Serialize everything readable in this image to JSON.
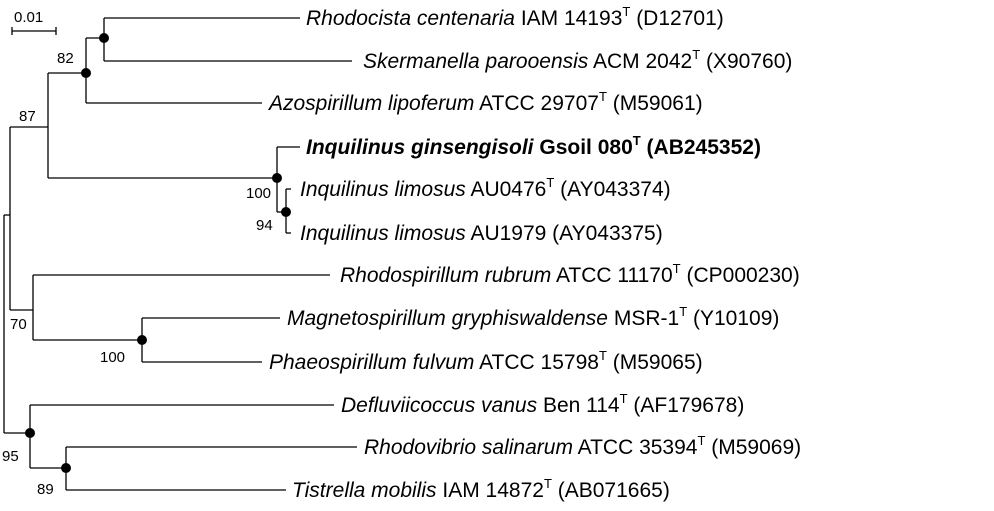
{
  "scale_bar": {
    "label": "0.01"
  },
  "taxa": [
    {
      "id": "t1",
      "species": "Rhodocista centenaria",
      "strain": "IAM 14193",
      "type_strain": true,
      "accession": "(D12701)",
      "bold": false
    },
    {
      "id": "t2",
      "species": "Skermanella parooensis",
      "strain": "ACM 2042",
      "type_strain": true,
      "accession": "(X90760)",
      "bold": false
    },
    {
      "id": "t3",
      "species": "Azospirillum lipoferum",
      "strain": "ATCC 29707",
      "type_strain": true,
      "accession": "(M59061)",
      "bold": false
    },
    {
      "id": "t4",
      "species": "Inquilinus ginsengisoli",
      "strain": "Gsoil 080",
      "type_strain": true,
      "accession": "(AB245352)",
      "bold": true
    },
    {
      "id": "t5",
      "species": "Inquilinus limosus",
      "strain": "AU0476",
      "type_strain": true,
      "accession": "(AY043374)",
      "bold": false
    },
    {
      "id": "t6",
      "species": "Inquilinus limosus",
      "strain": "AU1979",
      "type_strain": false,
      "accession": "(AY043375)",
      "bold": false
    },
    {
      "id": "t7",
      "species": "Rhodospirillum rubrum",
      "strain": "ATCC 11170",
      "type_strain": true,
      "accession": "(CP000230)",
      "bold": false
    },
    {
      "id": "t8",
      "species": "Magnetospirillum gryphiswaldense",
      "strain": "MSR-1",
      "type_strain": true,
      "accession": "(Y10109)",
      "bold": false
    },
    {
      "id": "t9",
      "species": "Phaeospirillum fulvum",
      "strain": "ATCC 15798",
      "type_strain": true,
      "accession": "(M59065)",
      "bold": false
    },
    {
      "id": "t10",
      "species": "Defluviicoccus vanus",
      "strain": "Ben 114",
      "type_strain": true,
      "accession": "(AF179678)",
      "bold": false
    },
    {
      "id": "t11",
      "species": "Rhodovibrio salinarum",
      "strain": "ATCC 35394",
      "type_strain": true,
      "accession": "(M59069)",
      "bold": false
    },
    {
      "id": "t12",
      "species": "Tistrella mobilis",
      "strain": "IAM 14872",
      "type_strain": true,
      "accession": "(AB071665)",
      "bold": false
    }
  ],
  "type_marker": "T",
  "bootstrap_values": [
    "82",
    "87",
    "100",
    "94",
    "70",
    "100",
    "95",
    "89"
  ]
}
